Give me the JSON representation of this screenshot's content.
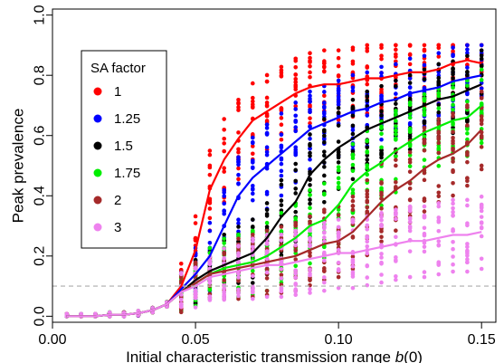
{
  "chart_data": {
    "type": "scatter",
    "title": "",
    "xlabel_main": "Initial characteristic transmission range ",
    "xlabel_italic": "b",
    "xlabel_suffix": "(0)",
    "ylabel": "Peak prevalence",
    "xlim": [
      0.0,
      0.155
    ],
    "ylim": [
      -0.02,
      1.02
    ],
    "x_ticks": [
      0.0,
      0.05,
      0.1,
      0.15
    ],
    "x_tick_labels": [
      "0.00",
      "0.05",
      "0.10",
      "0.15"
    ],
    "y_ticks": [
      0.0,
      0.2,
      0.4,
      0.6,
      0.8,
      1.0
    ],
    "y_tick_labels": [
      "0.0",
      "0.2",
      "0.4",
      "0.6",
      "0.8",
      "1.0"
    ],
    "threshold_line": {
      "y": 0.1,
      "style": "dashed",
      "color": "#bbbbbb"
    },
    "legend": {
      "title": "SA factor",
      "placement": "upper-left"
    },
    "x": [
      0.005,
      0.01,
      0.015,
      0.02,
      0.025,
      0.03,
      0.035,
      0.04,
      0.045,
      0.05,
      0.055,
      0.06,
      0.065,
      0.07,
      0.075,
      0.08,
      0.085,
      0.09,
      0.095,
      0.1,
      0.105,
      0.11,
      0.115,
      0.12,
      0.125,
      0.13,
      0.135,
      0.14,
      0.145,
      0.15
    ],
    "series": [
      {
        "name": "1",
        "color": "#ff0000",
        "values": [
          0.0,
          0.0,
          0.0,
          0.005,
          0.005,
          0.01,
          0.02,
          0.04,
          0.1,
          0.22,
          0.42,
          0.52,
          0.59,
          0.65,
          0.68,
          0.71,
          0.74,
          0.76,
          0.77,
          0.77,
          0.78,
          0.79,
          0.79,
          0.8,
          0.81,
          0.81,
          0.82,
          0.84,
          0.85,
          0.84
        ]
      },
      {
        "name": "1.25",
        "color": "#0000ff",
        "values": [
          0.0,
          0.0,
          0.0,
          0.005,
          0.005,
          0.01,
          0.02,
          0.04,
          0.09,
          0.14,
          0.2,
          0.3,
          0.4,
          0.46,
          0.5,
          0.54,
          0.58,
          0.62,
          0.64,
          0.66,
          0.68,
          0.69,
          0.71,
          0.72,
          0.74,
          0.75,
          0.76,
          0.78,
          0.79,
          0.8
        ]
      },
      {
        "name": "1.5",
        "color": "#000000",
        "values": [
          0.0,
          0.0,
          0.0,
          0.005,
          0.005,
          0.01,
          0.02,
          0.04,
          0.08,
          0.12,
          0.15,
          0.17,
          0.19,
          0.21,
          0.26,
          0.33,
          0.38,
          0.47,
          0.52,
          0.56,
          0.59,
          0.62,
          0.64,
          0.66,
          0.68,
          0.7,
          0.72,
          0.73,
          0.75,
          0.77
        ]
      },
      {
        "name": "1.75",
        "color": "#00ee00",
        "values": [
          0.0,
          0.0,
          0.0,
          0.005,
          0.005,
          0.01,
          0.02,
          0.04,
          0.08,
          0.11,
          0.14,
          0.16,
          0.17,
          0.18,
          0.2,
          0.23,
          0.26,
          0.3,
          0.32,
          0.37,
          0.44,
          0.48,
          0.51,
          0.55,
          0.58,
          0.61,
          0.63,
          0.65,
          0.66,
          0.7
        ]
      },
      {
        "name": "2",
        "color": "#a52a2a",
        "values": [
          0.0,
          0.0,
          0.0,
          0.005,
          0.005,
          0.01,
          0.02,
          0.04,
          0.08,
          0.11,
          0.14,
          0.15,
          0.16,
          0.17,
          0.18,
          0.19,
          0.2,
          0.22,
          0.24,
          0.25,
          0.28,
          0.33,
          0.38,
          0.42,
          0.45,
          0.49,
          0.52,
          0.54,
          0.57,
          0.62
        ]
      },
      {
        "name": "3",
        "color": "#ee82ee",
        "values": [
          0.0,
          0.0,
          0.0,
          0.005,
          0.005,
          0.01,
          0.02,
          0.04,
          0.08,
          0.1,
          0.13,
          0.14,
          0.15,
          0.16,
          0.17,
          0.17,
          0.18,
          0.19,
          0.2,
          0.21,
          0.21,
          0.22,
          0.23,
          0.24,
          0.25,
          0.25,
          0.26,
          0.27,
          0.27,
          0.28
        ]
      }
    ]
  }
}
